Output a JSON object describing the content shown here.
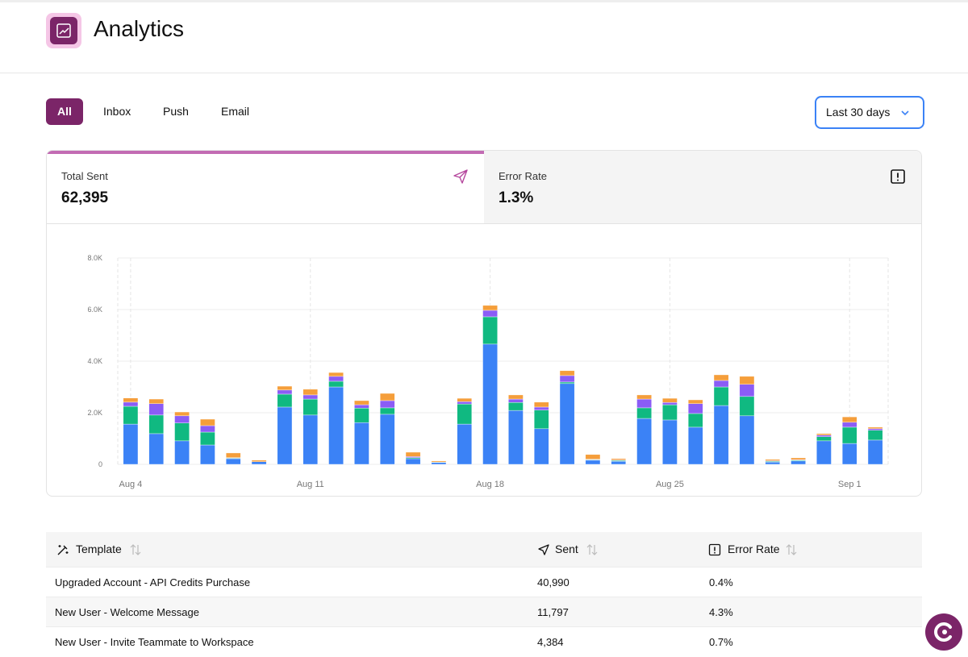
{
  "header": {
    "title": "Analytics"
  },
  "tabs": [
    "All",
    "Inbox",
    "Push",
    "Email"
  ],
  "date_range": "Last 30 days",
  "stats": [
    {
      "label": "Total Sent",
      "value": "62,395"
    },
    {
      "label": "Error Rate",
      "value": "1.3%"
    }
  ],
  "chart_data": {
    "type": "bar",
    "stacked": true,
    "categories": [
      "Aug 4",
      null,
      null,
      null,
      null,
      null,
      null,
      "Aug 11",
      null,
      null,
      null,
      null,
      null,
      null,
      "Aug 18",
      null,
      null,
      null,
      null,
      null,
      null,
      "Aug 25",
      null,
      null,
      null,
      null,
      null,
      null,
      "Sep 1",
      null
    ],
    "series": [
      {
        "color": "#3b82f6",
        "values": [
          1560,
          1190,
          910,
          750,
          220,
          100,
          2220,
          1910,
          3000,
          1620,
          1940,
          220,
          70,
          1560,
          4660,
          2090,
          1380,
          3130,
          160,
          120,
          1780,
          1720,
          1440,
          2280,
          1880,
          90,
          130,
          910,
          810,
          940
        ]
      },
      {
        "color": "#10b981",
        "values": [
          690,
          720,
          690,
          500,
          20,
          0,
          500,
          620,
          220,
          560,
          250,
          40,
          20,
          780,
          1060,
          310,
          720,
          60,
          20,
          30,
          410,
          590,
          530,
          720,
          750,
          30,
          30,
          160,
          630,
          380
        ]
      },
      {
        "color": "#8b5cf6",
        "values": [
          160,
          440,
          280,
          250,
          20,
          0,
          160,
          160,
          190,
          130,
          280,
          40,
          0,
          90,
          250,
          130,
          120,
          250,
          20,
          20,
          340,
          90,
          380,
          250,
          470,
          20,
          20,
          60,
          190,
          60
        ]
      },
      {
        "color": "#f59e3b",
        "values": [
          160,
          180,
          150,
          250,
          180,
          60,
          150,
          220,
          150,
          160,
          280,
          170,
          40,
          130,
          190,
          160,
          190,
          190,
          180,
          50,
          160,
          160,
          150,
          220,
          310,
          50,
          70,
          60,
          210,
          60
        ]
      }
    ],
    "ylim": [
      0,
      8000
    ],
    "yticks": [
      0,
      {
        "value": 2000,
        "label": "2.0K"
      },
      {
        "value": 4000,
        "label": "4.0K"
      },
      {
        "value": 6000,
        "label": "6.0K"
      },
      {
        "value": 8000,
        "label": "8.0K"
      }
    ],
    "grid": true
  },
  "table": {
    "columns": [
      "Template",
      "Sent",
      "Error Rate"
    ],
    "rows": [
      [
        "Upgraded Account - API Credits Purchase",
        "40,990",
        "0.4%"
      ],
      [
        "New User - Welcome Message",
        "11,797",
        "4.3%"
      ],
      [
        "New User - Invite Teammate to Workspace",
        "4,384",
        "0.7%"
      ]
    ]
  }
}
